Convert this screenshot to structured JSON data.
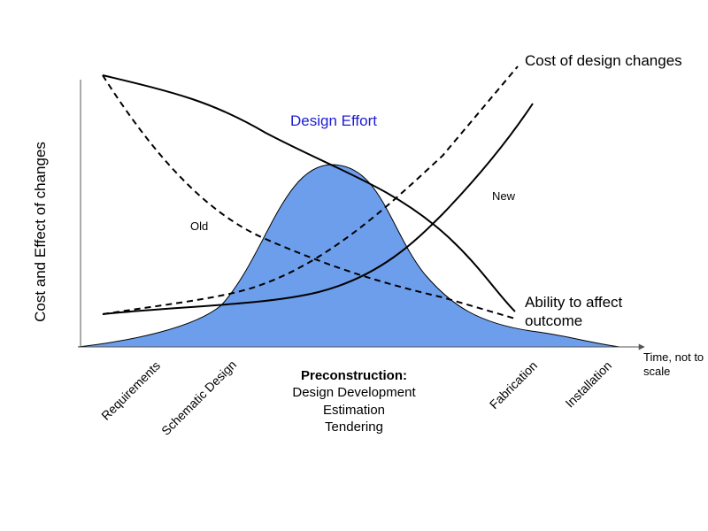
{
  "y_axis_label": "Cost and Effect of changes",
  "x_axis_label": [
    "Time, not to",
    "scale"
  ],
  "annotations": {
    "design_effort": "Design Effort",
    "old": "Old",
    "new": "New",
    "cost_of_design_changes": "Cost of design changes",
    "ability_to_affect_outcome": [
      "Ability to affect",
      "outcome"
    ]
  },
  "phases": {
    "requirements": "Requirements",
    "schematic_design": "Schematic Design",
    "preconstruction": {
      "title": "Preconstruction:",
      "lines": [
        "Design Development",
        "Estimation",
        "Tendering"
      ]
    },
    "fabrication": "Fabrication",
    "installation": "Installation"
  }
}
